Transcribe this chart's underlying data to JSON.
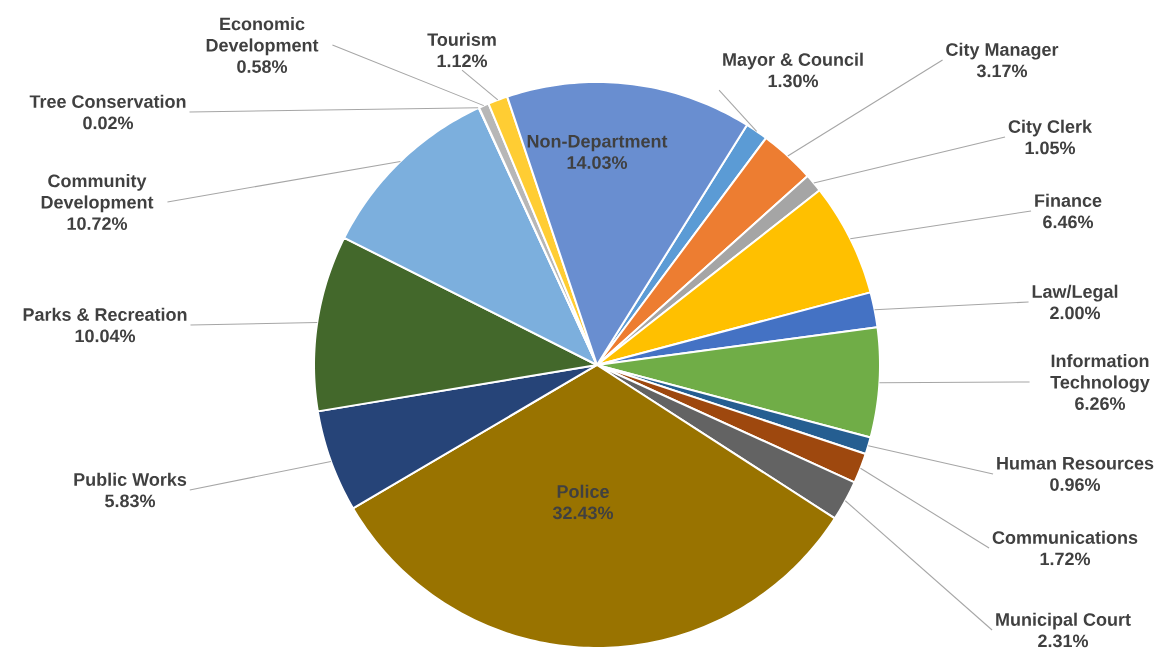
{
  "chart_data": {
    "type": "pie",
    "categories": [
      "Mayor & Council",
      "City Manager",
      "City Clerk",
      "Finance",
      "Law/Legal",
      "Information Technology",
      "Human Resources",
      "Communications",
      "Municipal Court",
      "Police",
      "Public Works",
      "Parks & Recreation",
      "Community Development",
      "Tree Conservation",
      "Economic Development",
      "Tourism",
      "Non-Department"
    ],
    "values": [
      1.3,
      3.17,
      1.05,
      6.46,
      2.0,
      6.26,
      0.96,
      1.72,
      2.31,
      32.43,
      5.83,
      10.04,
      10.72,
      0.02,
      0.58,
      1.12,
      14.03
    ],
    "value_labels": [
      "1.30%",
      "3.17%",
      "1.05%",
      "6.46%",
      "2.00%",
      "6.26%",
      "0.96%",
      "1.72%",
      "2.31%",
      "32.43%",
      "5.83%",
      "10.04%",
      "10.72%",
      "0.02%",
      "0.58%",
      "1.12%",
      "14.03%"
    ],
    "colors": [
      "#5b9bd5",
      "#ed7d31",
      "#a5a5a5",
      "#ffc000",
      "#4472c4",
      "#70ad47",
      "#255e91",
      "#9e480e",
      "#636363",
      "#997300",
      "#264478",
      "#43682b",
      "#7cafdd",
      "#f1975a",
      "#b7b7b7",
      "#ffcd33",
      "#698ed0"
    ]
  }
}
